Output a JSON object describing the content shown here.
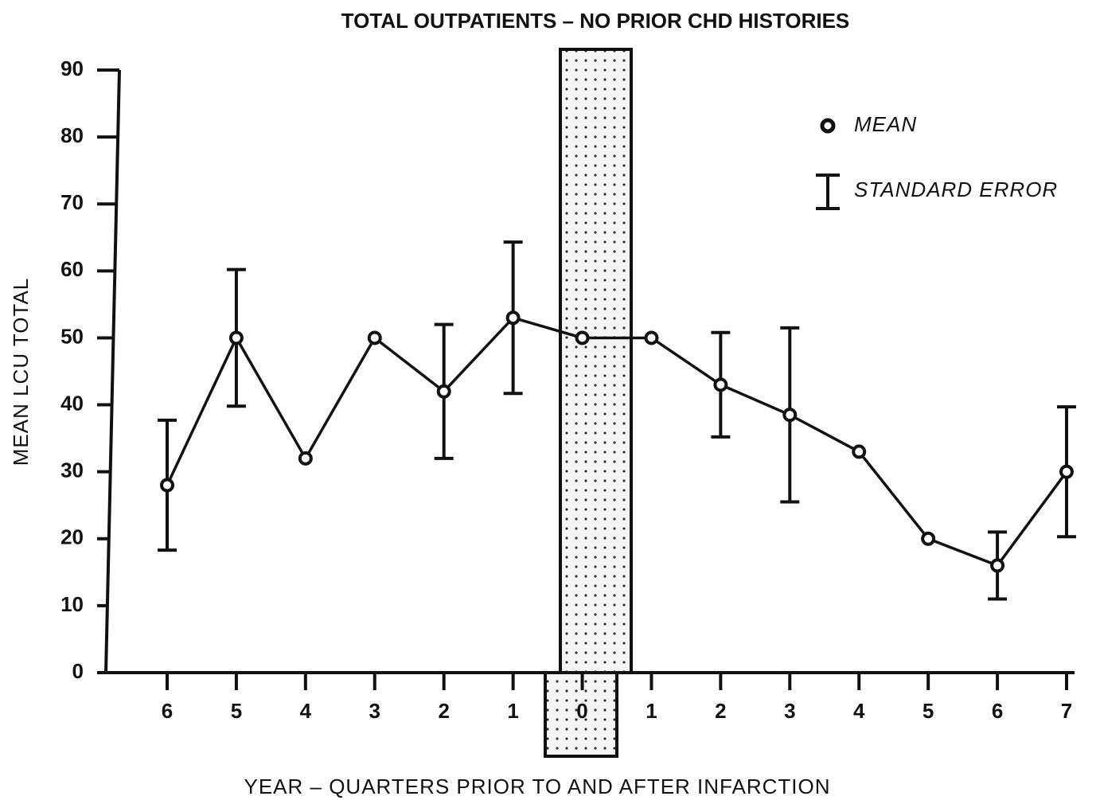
{
  "chart_data": {
    "type": "line",
    "title": "TOTAL OUTPATIENTS – NO PRIOR CHD HISTORIES",
    "x_label": "YEAR – QUARTERS PRIOR TO AND AFTER INFARCTION",
    "y_label": "MEAN LCU TOTAL",
    "categories": [
      "6",
      "5",
      "4",
      "3",
      "2",
      "1",
      "0",
      "1",
      "2",
      "3",
      "4",
      "5",
      "6",
      "7"
    ],
    "series": [
      {
        "name": "MEAN",
        "color": "#111111",
        "values": [
          28,
          50,
          32,
          50,
          42,
          53,
          50,
          50,
          43,
          38.5,
          33,
          20,
          16,
          30
        ],
        "errors": [
          9.7,
          10.2,
          null,
          null,
          10,
          11.3,
          null,
          null,
          7.8,
          13,
          null,
          null,
          5,
          9.7
        ]
      }
    ],
    "error_label": "STANDARD ERROR",
    "ylim": [
      0,
      90
    ],
    "yticks": [
      0,
      10,
      20,
      30,
      40,
      50,
      60,
      70,
      80,
      90
    ],
    "grid": false
  }
}
